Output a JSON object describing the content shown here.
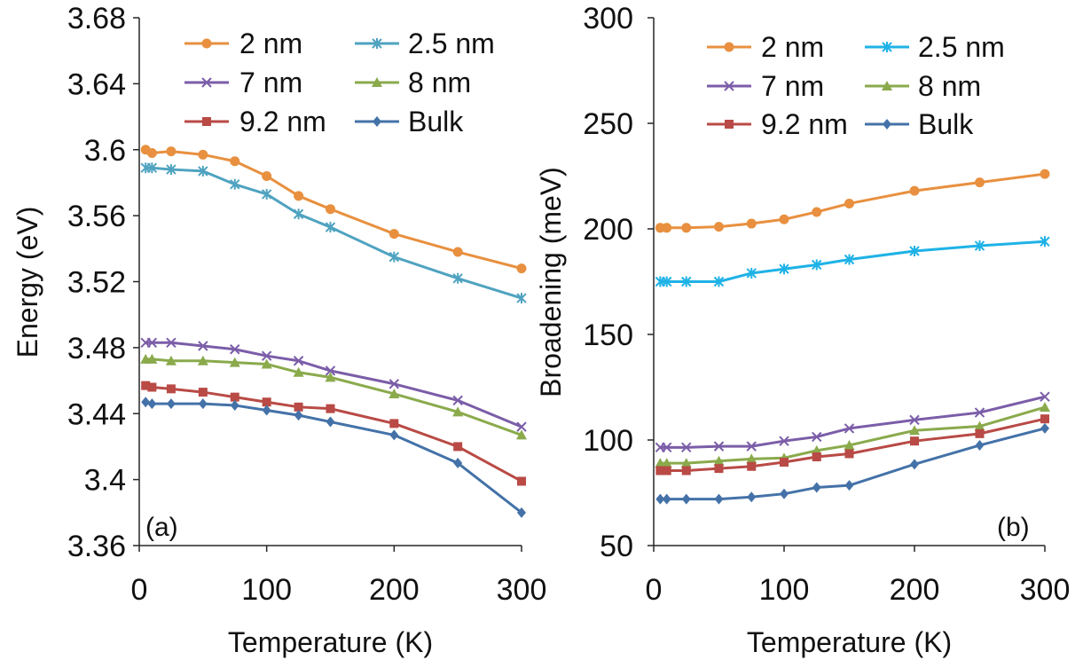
{
  "chart_data": [
    {
      "type": "line",
      "panel_label": "(a)",
      "xlabel": "Temperature (K)",
      "ylabel": "Energy  (eV)",
      "xlim": [
        0,
        300
      ],
      "ylim": [
        3.36,
        3.68
      ],
      "xticks": [
        0,
        100,
        200,
        300
      ],
      "yticks": [
        3.36,
        3.4,
        3.44,
        3.48,
        3.52,
        3.56,
        3.6,
        3.64,
        3.68
      ],
      "ytick_labels": [
        "3.36",
        "3.4",
        "3.44",
        "3.48",
        "3.52",
        "3.56",
        "3.6",
        "3.64",
        "3.68"
      ],
      "grid": false,
      "legend_position": "top",
      "x": [
        5,
        10,
        25,
        50,
        75,
        100,
        125,
        150,
        200,
        250,
        300
      ],
      "series": [
        {
          "name": "2 nm",
          "color": "#e8903f",
          "marker": "circle",
          "values": [
            3.6,
            3.598,
            3.599,
            3.597,
            3.593,
            3.584,
            3.572,
            3.564,
            3.549,
            3.538,
            3.528
          ]
        },
        {
          "name": "2.5 nm",
          "color": "#4fa3c0",
          "marker": "star",
          "values": [
            3.589,
            3.589,
            3.588,
            3.587,
            3.579,
            3.573,
            3.561,
            3.553,
            3.535,
            3.522,
            3.51
          ]
        },
        {
          "name": "7 nm",
          "color": "#7b5da8",
          "marker": "x",
          "values": [
            3.483,
            3.483,
            3.483,
            3.481,
            3.479,
            3.475,
            3.472,
            3.466,
            3.458,
            3.448,
            3.432
          ]
        },
        {
          "name": "8 nm",
          "color": "#8aaa4c",
          "marker": "triangle",
          "values": [
            3.473,
            3.473,
            3.472,
            3.472,
            3.471,
            3.47,
            3.465,
            3.462,
            3.452,
            3.441,
            3.427
          ]
        },
        {
          "name": "9.2 nm",
          "color": "#b94a45",
          "marker": "square",
          "values": [
            3.457,
            3.456,
            3.455,
            3.453,
            3.45,
            3.447,
            3.444,
            3.443,
            3.434,
            3.42,
            3.399
          ]
        },
        {
          "name": "Bulk",
          "color": "#4472a8",
          "marker": "diamond",
          "values": [
            3.447,
            3.446,
            3.446,
            3.446,
            3.445,
            3.442,
            3.439,
            3.435,
            3.427,
            3.41,
            3.38
          ]
        }
      ]
    },
    {
      "type": "line",
      "panel_label": "(b)",
      "xlabel": "Temperature (K)",
      "ylabel": "Broadening (meV)",
      "xlim": [
        0,
        300
      ],
      "ylim": [
        50,
        300
      ],
      "xticks": [
        0,
        100,
        200,
        300
      ],
      "yticks": [
        50,
        100,
        150,
        200,
        250,
        300
      ],
      "ytick_labels": [
        "50",
        "100",
        "150",
        "200",
        "250",
        "300"
      ],
      "grid": false,
      "legend_position": "top",
      "x": [
        5,
        10,
        25,
        50,
        75,
        100,
        125,
        150,
        200,
        250,
        300
      ],
      "series": [
        {
          "name": "2 nm",
          "color": "#e8903f",
          "marker": "circle",
          "values": [
            200.5,
            200.5,
            200.5,
            201,
            202.5,
            204.5,
            208,
            212,
            218,
            222,
            226
          ]
        },
        {
          "name": "2.5 nm",
          "color": "#1fb2e6",
          "marker": "star",
          "values": [
            175,
            175,
            175,
            175,
            179,
            181,
            183,
            185.5,
            189.5,
            192,
            194
          ]
        },
        {
          "name": "7 nm",
          "color": "#7b5da8",
          "marker": "x",
          "values": [
            96.5,
            96.5,
            96.5,
            97,
            97,
            99.5,
            101.5,
            105.5,
            109.5,
            113,
            120.5
          ]
        },
        {
          "name": "8 nm",
          "color": "#8aaa4c",
          "marker": "triangle",
          "values": [
            89,
            89,
            89,
            90,
            91,
            91.5,
            95,
            97.5,
            104.5,
            106.5,
            115.5
          ]
        },
        {
          "name": "9.2 nm",
          "color": "#b94a45",
          "marker": "square",
          "values": [
            85.5,
            85.5,
            85.5,
            86.5,
            87.5,
            89.5,
            92,
            93.5,
            99.5,
            103,
            110
          ]
        },
        {
          "name": "Bulk",
          "color": "#4472a8",
          "marker": "diamond",
          "values": [
            72,
            72,
            72,
            72,
            73,
            74.5,
            77.5,
            78.5,
            88.5,
            97.5,
            105.5
          ]
        }
      ]
    }
  ]
}
